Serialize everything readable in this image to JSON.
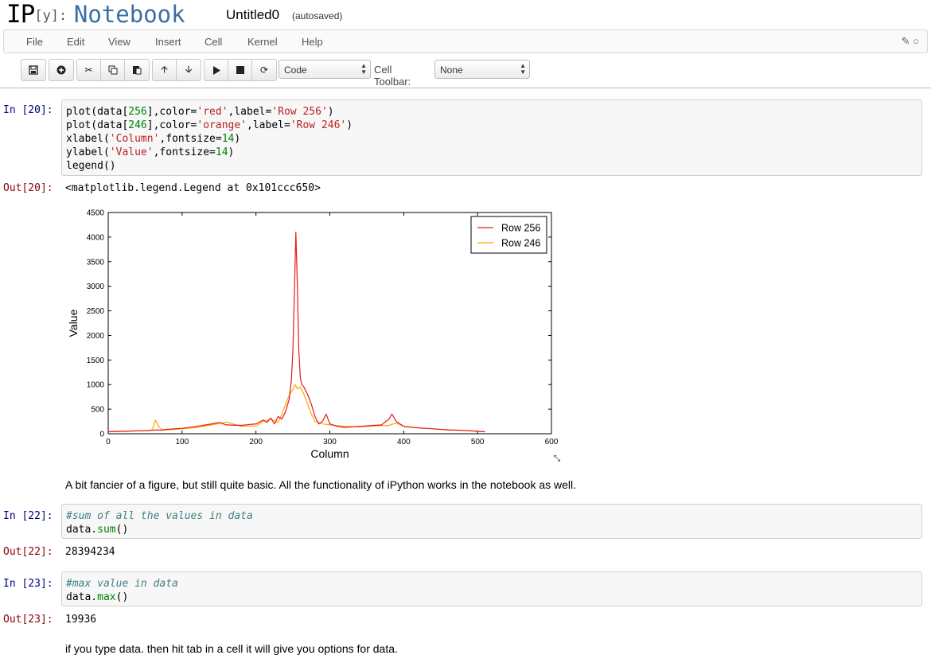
{
  "header": {
    "logo_ip": "IP",
    "logo_y": "[y]:",
    "logo_notebook": "Notebook",
    "title": "Untitled0",
    "autosave": "(autosaved)"
  },
  "menubar": {
    "items": [
      "File",
      "Edit",
      "View",
      "Insert",
      "Cell",
      "Kernel",
      "Help"
    ],
    "icons": [
      "pencil-icon",
      "kernel-status-circle-icon"
    ]
  },
  "toolbar": {
    "buttons": [
      "save-icon",
      "insert-cell-icon",
      "cut-icon",
      "copy-icon",
      "paste-icon",
      "move-up-icon",
      "move-down-icon",
      "run-icon",
      "stop-icon",
      "restart-icon"
    ],
    "cell_type": "Code",
    "cell_toolbar_label": "Cell Toolbar:",
    "cell_toolbar_value": "None"
  },
  "cells": {
    "c20": {
      "in_prompt": "In [20]:",
      "out_prompt": "Out[20]:",
      "output": "<matplotlib.legend.Legend at 0x101ccc650>"
    },
    "md1": "A bit fancier of a figure, but still quite basic. All the functionality of iPython works in the notebook as well.",
    "c22": {
      "in_prompt": "In [22]:",
      "comment": "#sum of all the values in data",
      "out_prompt": "Out[22]:",
      "output": "28394234"
    },
    "c23": {
      "in_prompt": "In [23]:",
      "comment": "#max value in data",
      "out_prompt": "Out[23]:",
      "output": "19936"
    },
    "md2": "if you type data. then hit tab in a cell it will give you options for data."
  },
  "chart_data": {
    "type": "line",
    "xlabel": "Column",
    "ylabel": "Value",
    "xlim": [
      0,
      600
    ],
    "ylim": [
      0,
      4500
    ],
    "xticks": [
      0,
      100,
      200,
      300,
      400,
      500,
      600
    ],
    "yticks": [
      0,
      500,
      1000,
      1500,
      2000,
      2500,
      3000,
      3500,
      4000,
      4500
    ],
    "legend_position": "top-right",
    "grid": false,
    "series": [
      {
        "name": "Row 256",
        "color": "#e41a1c",
        "x": [
          0,
          20,
          40,
          60,
          66,
          72,
          80,
          100,
          120,
          140,
          150,
          160,
          180,
          200,
          210,
          215,
          220,
          225,
          230,
          235,
          240,
          245,
          248,
          250,
          252,
          254,
          256,
          258,
          260,
          262,
          265,
          270,
          275,
          280,
          285,
          290,
          295,
          300,
          310,
          320,
          340,
          360,
          370,
          380,
          384,
          390,
          400,
          420,
          440,
          460,
          480,
          500,
          510
        ],
        "y": [
          40,
          50,
          60,
          70,
          80,
          70,
          90,
          110,
          150,
          200,
          230,
          180,
          170,
          200,
          280,
          230,
          320,
          200,
          350,
          300,
          450,
          700,
          1100,
          1700,
          2800,
          4100,
          3000,
          1700,
          1150,
          1000,
          950,
          800,
          600,
          350,
          200,
          250,
          400,
          200,
          150,
          130,
          150,
          170,
          180,
          300,
          400,
          250,
          150,
          120,
          100,
          80,
          70,
          50,
          40
        ]
      },
      {
        "name": "Row 246",
        "color": "#ffa500",
        "x": [
          0,
          20,
          40,
          55,
          60,
          64,
          68,
          72,
          80,
          100,
          120,
          140,
          160,
          180,
          200,
          210,
          220,
          230,
          235,
          240,
          245,
          250,
          253,
          256,
          260,
          265,
          270,
          275,
          280,
          290,
          300,
          320,
          340,
          360,
          380,
          390,
          400,
          420,
          440,
          460,
          480,
          500,
          510
        ],
        "y": [
          40,
          50,
          60,
          60,
          90,
          280,
          150,
          90,
          80,
          100,
          130,
          180,
          240,
          150,
          160,
          250,
          300,
          230,
          400,
          600,
          780,
          900,
          1000,
          920,
          950,
          800,
          600,
          400,
          250,
          200,
          180,
          150,
          140,
          160,
          170,
          220,
          150,
          120,
          100,
          80,
          70,
          50,
          40
        ]
      }
    ]
  }
}
